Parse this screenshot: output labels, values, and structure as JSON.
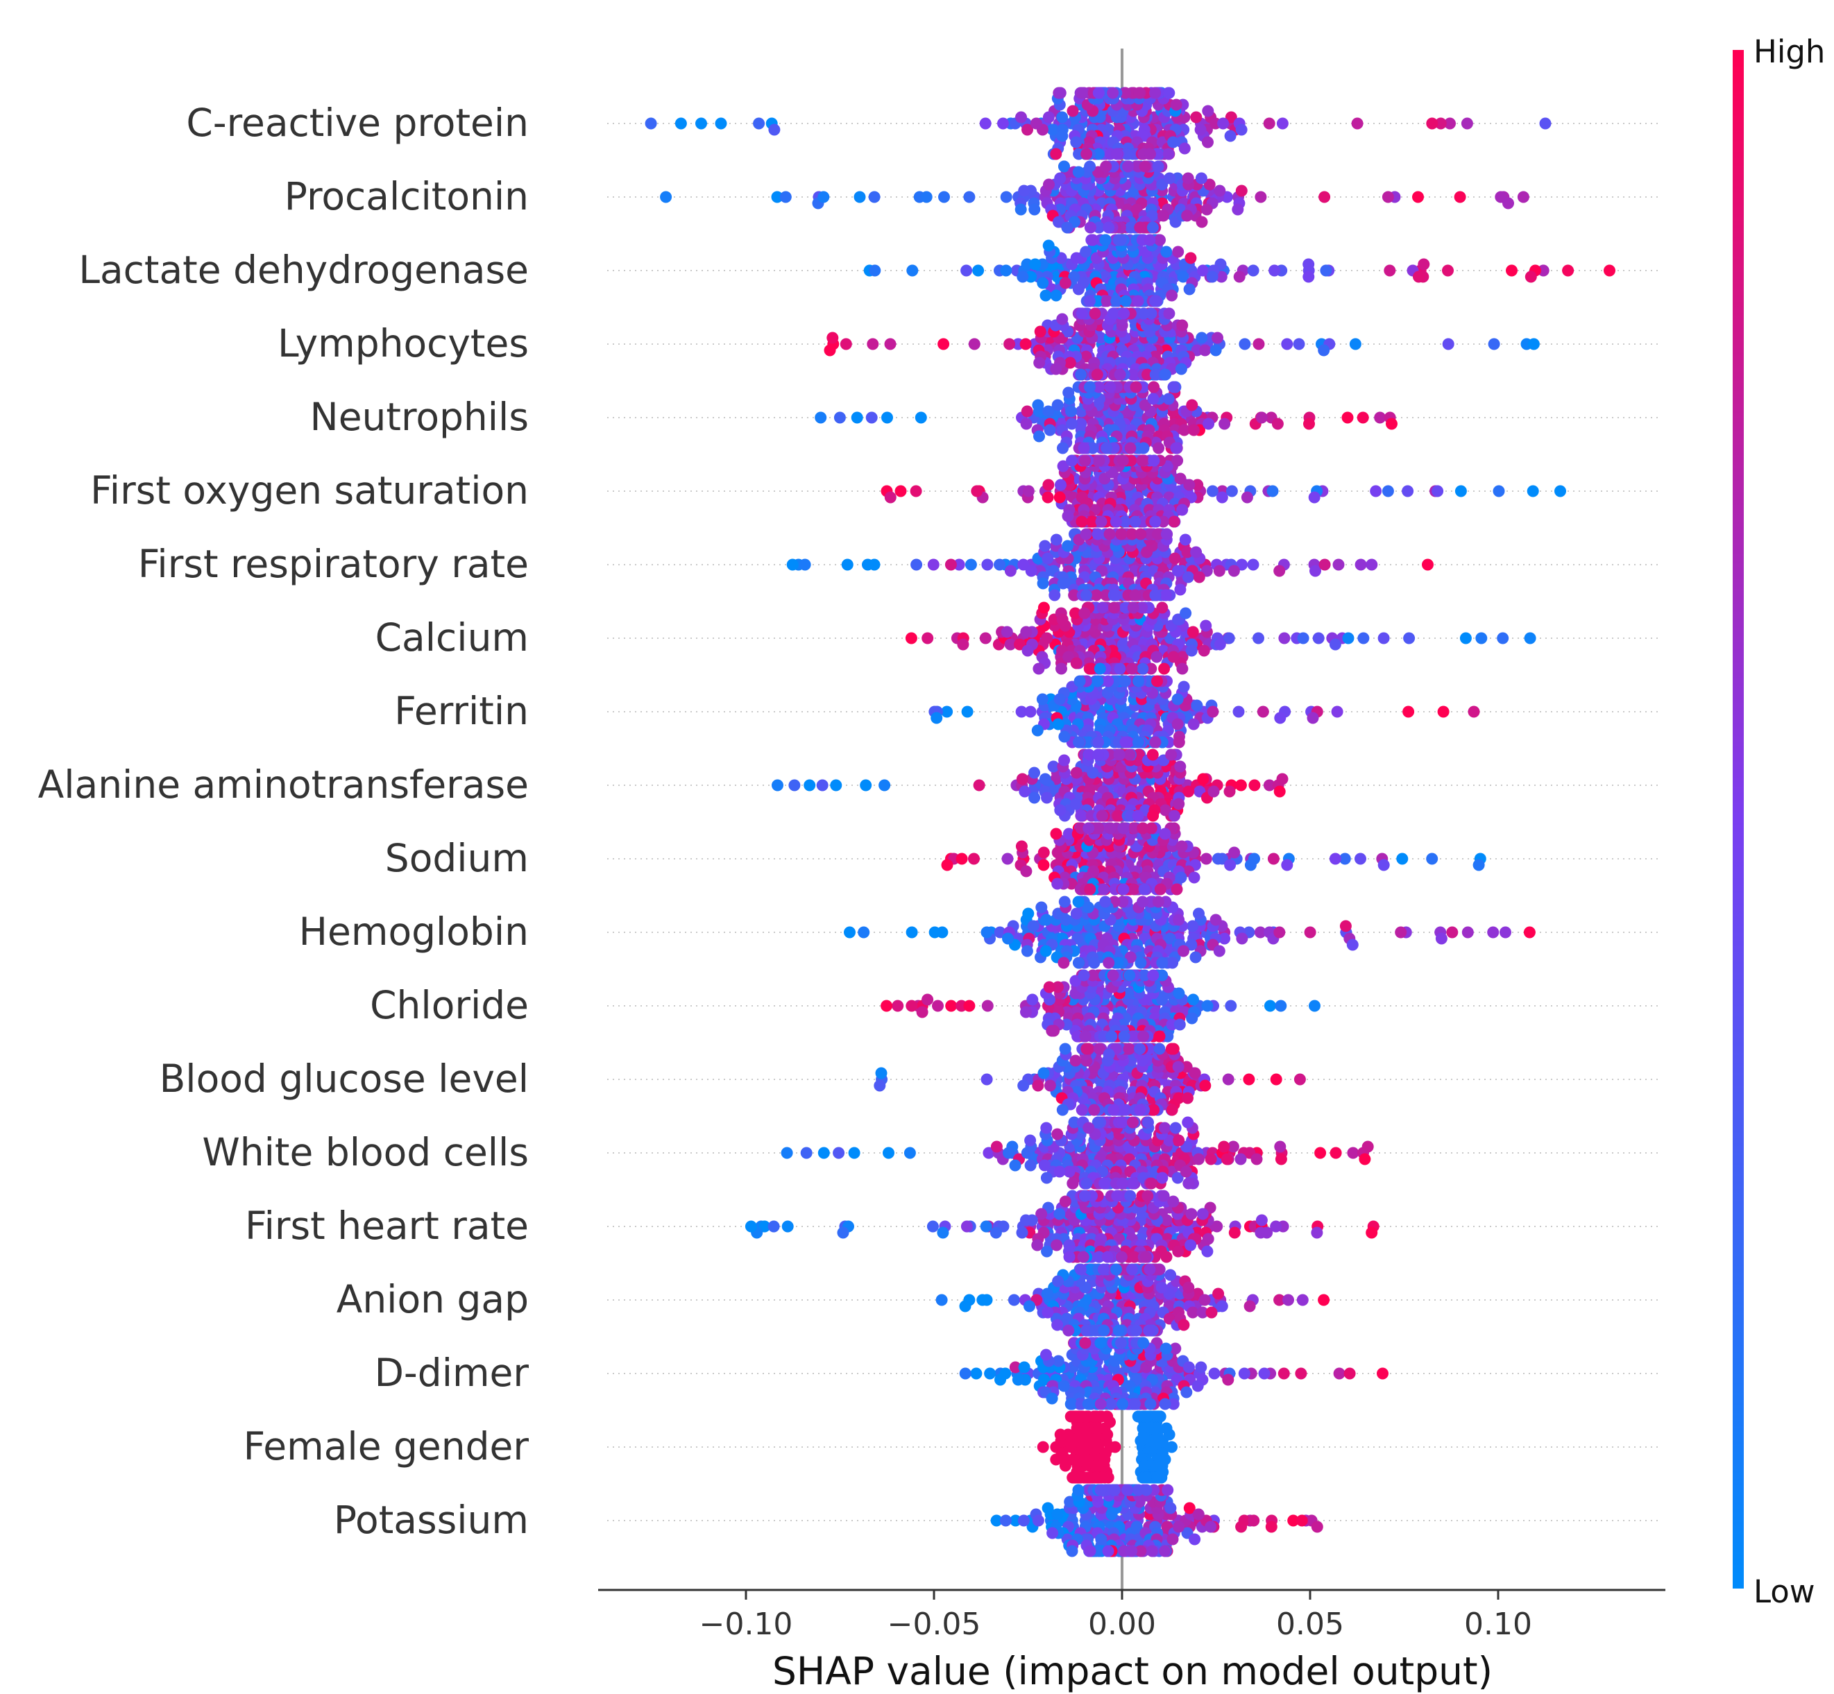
{
  "chart_data": {
    "type": "scatter",
    "subtype": "shap-beeswarm",
    "title": "",
    "xlabel": "SHAP value (impact on model output)",
    "xlim": [
      -0.14,
      0.145
    ],
    "xticks": [
      -0.1,
      -0.05,
      0.0,
      0.05,
      0.1
    ],
    "xtick_labels": [
      "−0.10",
      "−0.05",
      "0.00",
      "0.05",
      "0.10"
    ],
    "colorbar": {
      "high_label": "High",
      "low_label": "Low",
      "high_color": "#ff0052",
      "low_color": "#008bfb"
    },
    "features": [
      {
        "name": "C-reactive protein",
        "range": [
          -0.126,
          0.116
        ],
        "trend": "pos",
        "hv_tail": 0.4,
        "dense": 3.0
      },
      {
        "name": "Procalcitonin",
        "range": [
          -0.122,
          0.127
        ],
        "trend": "pos",
        "hv_tail": 0.4,
        "dense": 2.8
      },
      {
        "name": "Lactate dehydrogenase",
        "range": [
          -0.068,
          0.13
        ],
        "trend": "pos",
        "hv_tail": 0.3,
        "dense": 2.4
      },
      {
        "name": "Lymphocytes",
        "range": [
          -0.087,
          0.114
        ],
        "trend": "neg",
        "hv_tail": 0.2,
        "dense": 2.6
      },
      {
        "name": "Neutrophils",
        "range": [
          -0.084,
          0.082
        ],
        "trend": "pos",
        "hv_tail": 0.2,
        "dense": 2.4
      },
      {
        "name": "First oxygen saturation",
        "range": [
          -0.067,
          0.12
        ],
        "trend": "neg",
        "hv_tail": 0.2,
        "dense": 2.6
      },
      {
        "name": "First respiratory rate",
        "range": [
          -0.089,
          0.085
        ],
        "trend": "pos",
        "hv_tail": 0.2,
        "dense": 2.2
      },
      {
        "name": "Calcium",
        "range": [
          -0.058,
          0.114
        ],
        "trend": "neg",
        "hv_tail": 0.2,
        "dense": 2.0
      },
      {
        "name": "Ferritin",
        "range": [
          -0.057,
          0.097
        ],
        "trend": "pos",
        "hv_tail": 0.2,
        "dense": 2.1
      },
      {
        "name": "Alanine aminotransferase",
        "range": [
          -0.095,
          0.051
        ],
        "trend": "pos",
        "hv_tail": 0.1,
        "dense": 2.0
      },
      {
        "name": "Sodium",
        "range": [
          -0.049,
          0.098
        ],
        "trend": "neg",
        "hv_tail": 0.2,
        "dense": 1.9
      },
      {
        "name": "Hemoglobin",
        "range": [
          -0.074,
          0.123
        ],
        "trend": "pos",
        "hv_tail": 0.25,
        "dense": 2.0
      },
      {
        "name": "Chloride",
        "range": [
          -0.064,
          0.055
        ],
        "trend": "neg",
        "hv_tail": 0.1,
        "dense": 1.8
      },
      {
        "name": "Blood glucose level",
        "range": [
          -0.07,
          0.05
        ],
        "trend": "pos",
        "hv_tail": 0.1,
        "dense": 1.8
      },
      {
        "name": "White blood cells",
        "range": [
          -0.093,
          0.075
        ],
        "trend": "pos",
        "hv_tail": 0.1,
        "dense": 1.8
      },
      {
        "name": "First heart rate",
        "range": [
          -0.1,
          0.07
        ],
        "trend": "pos",
        "hv_tail": 0.1,
        "dense": 1.8
      },
      {
        "name": "Anion gap",
        "range": [
          -0.051,
          0.062
        ],
        "trend": "pos",
        "hv_tail": 0.1,
        "dense": 1.7
      },
      {
        "name": "D-dimer",
        "range": [
          -0.043,
          0.073
        ],
        "trend": "pos",
        "hv_tail": 0.1,
        "dense": 1.6
      },
      {
        "name": "Female gender",
        "range": [
          -0.032,
          0.019
        ],
        "trend": "binary",
        "hv_tail": 0.0,
        "dense": 2.0
      },
      {
        "name": "Potassium",
        "range": [
          -0.036,
          0.058
        ],
        "trend": "pos",
        "hv_tail": 0.1,
        "dense": 1.6
      }
    ]
  }
}
